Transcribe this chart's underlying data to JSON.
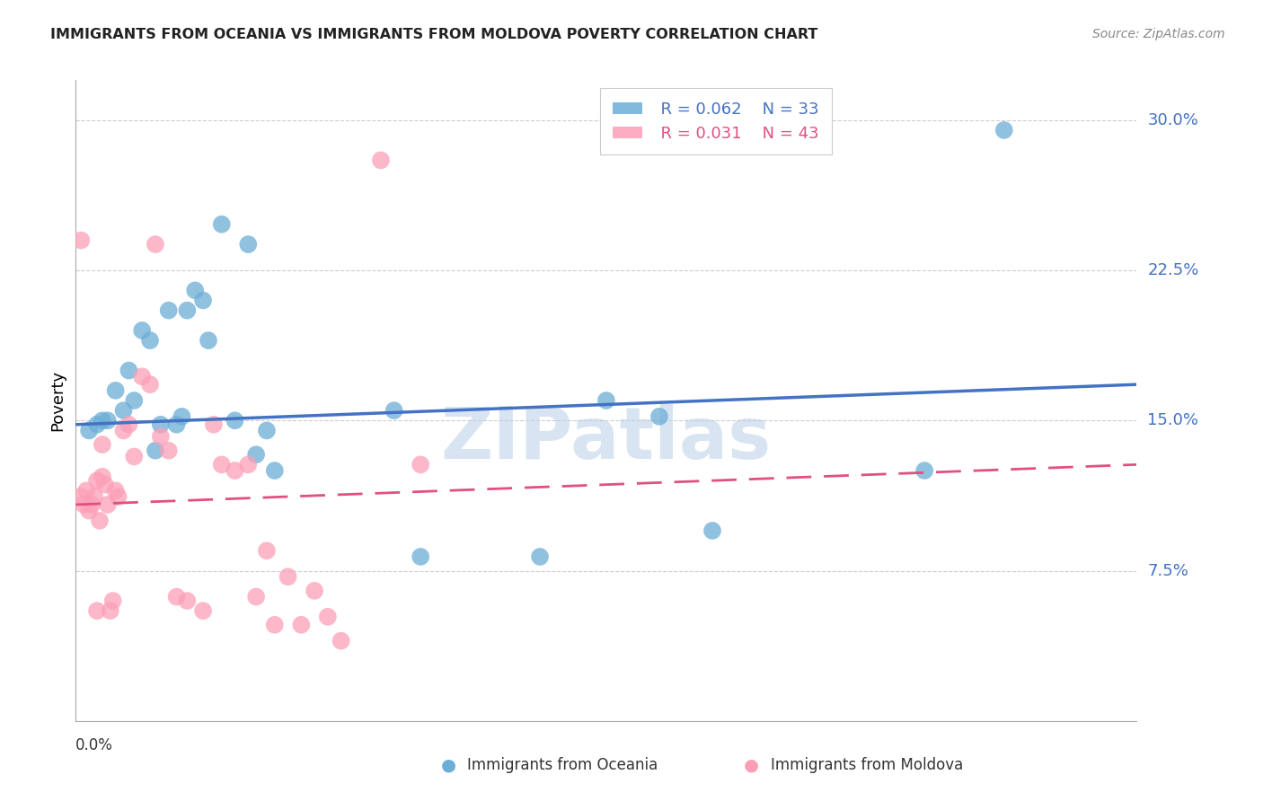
{
  "title": "IMMIGRANTS FROM OCEANIA VS IMMIGRANTS FROM MOLDOVA POVERTY CORRELATION CHART",
  "source": "Source: ZipAtlas.com",
  "ylabel": "Poverty",
  "ytick_labels": [
    "7.5%",
    "15.0%",
    "22.5%",
    "30.0%"
  ],
  "ytick_values": [
    0.075,
    0.15,
    0.225,
    0.3
  ],
  "xlim": [
    0.0,
    0.4
  ],
  "ylim": [
    0.0,
    0.32
  ],
  "color_oceania": "#6baed6",
  "color_moldova": "#fc9fb6",
  "color_blue_text": "#4472C4",
  "color_pink_text": "#E05080",
  "watermark": "ZIPatlas",
  "oceania_x": [
    0.005,
    0.008,
    0.01,
    0.012,
    0.015,
    0.018,
    0.02,
    0.022,
    0.025,
    0.028,
    0.03,
    0.032,
    0.035,
    0.038,
    0.04,
    0.042,
    0.045,
    0.048,
    0.05,
    0.055,
    0.06,
    0.065,
    0.068,
    0.072,
    0.075,
    0.12,
    0.13,
    0.175,
    0.2,
    0.22,
    0.24,
    0.32,
    0.35
  ],
  "oceania_y": [
    0.145,
    0.148,
    0.15,
    0.15,
    0.165,
    0.155,
    0.175,
    0.16,
    0.195,
    0.19,
    0.135,
    0.148,
    0.205,
    0.148,
    0.152,
    0.205,
    0.215,
    0.21,
    0.19,
    0.248,
    0.15,
    0.238,
    0.133,
    0.145,
    0.125,
    0.155,
    0.082,
    0.082,
    0.16,
    0.152,
    0.095,
    0.125,
    0.295
  ],
  "oceania_trend_x": [
    0.0,
    0.4
  ],
  "oceania_trend_y": [
    0.148,
    0.168
  ],
  "moldova_x": [
    0.002,
    0.003,
    0.004,
    0.005,
    0.006,
    0.007,
    0.008,
    0.008,
    0.009,
    0.01,
    0.01,
    0.011,
    0.012,
    0.013,
    0.014,
    0.015,
    0.016,
    0.018,
    0.02,
    0.022,
    0.025,
    0.028,
    0.03,
    0.032,
    0.035,
    0.038,
    0.042,
    0.048,
    0.052,
    0.055,
    0.06,
    0.065,
    0.068,
    0.072,
    0.075,
    0.08,
    0.085,
    0.09,
    0.095,
    0.1,
    0.115,
    0.13,
    0.002
  ],
  "moldova_y": [
    0.112,
    0.108,
    0.115,
    0.105,
    0.108,
    0.112,
    0.12,
    0.055,
    0.1,
    0.138,
    0.122,
    0.118,
    0.108,
    0.055,
    0.06,
    0.115,
    0.112,
    0.145,
    0.148,
    0.132,
    0.172,
    0.168,
    0.238,
    0.142,
    0.135,
    0.062,
    0.06,
    0.055,
    0.148,
    0.128,
    0.125,
    0.128,
    0.062,
    0.085,
    0.048,
    0.072,
    0.048,
    0.065,
    0.052,
    0.04,
    0.28,
    0.128,
    0.24
  ],
  "moldova_trend_x": [
    0.0,
    0.4
  ],
  "moldova_trend_y": [
    0.108,
    0.128
  ]
}
